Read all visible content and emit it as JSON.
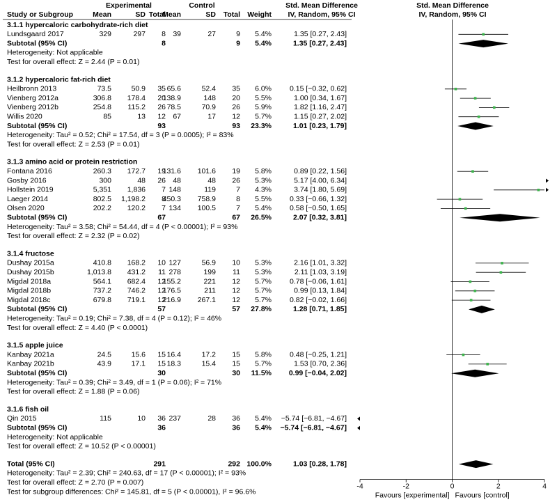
{
  "chart_data": {
    "type": "forest",
    "group_headers": {
      "experimental": "Experimental",
      "control": "Control",
      "effect": "Std. Mean Difference"
    },
    "columns": [
      "Study or Subgroup",
      "Mean",
      "SD",
      "Total",
      "Mean",
      "SD",
      "Total",
      "Weight",
      "IV, Random, 95% CI"
    ],
    "plot_title": "Std. Mean Difference",
    "plot_subtitle": "IV, Random, 95% CI",
    "xlim": [
      -4,
      4
    ],
    "xticks": [
      -4,
      -2,
      0,
      2,
      4
    ],
    "xlabel_left": "Favours [experimental]",
    "xlabel_right": "Favours [control]",
    "marker_color": "#3cb44b",
    "diamond_color": "#000000",
    "groups": [
      {
        "title": "3.1.1 hypercaloric carbohydrate-rich diet",
        "studies": [
          {
            "name": "Lundsgaard 2017",
            "cells": [
              "329",
              "297",
              "8",
              "39",
              "27",
              "9",
              "5.4%"
            ],
            "ci": "1.35 [0.27, 2.43]",
            "smd": 1.35,
            "lo": 0.27,
            "hi": 2.43
          }
        ],
        "subtotal": {
          "label": "Subtotal (95% CI)",
          "exp_total": "8",
          "ctl_total": "9",
          "weight": "5.4%",
          "ci": "1.35 [0.27, 2.43]",
          "smd": 1.35,
          "lo": 0.27,
          "hi": 2.43
        },
        "heterogeneity": "Heterogeneity: Not applicable",
        "overall_effect": "Test for overall effect: Z = 2.44 (P = 0.01)"
      },
      {
        "title": "3.1.2 hypercaloric fat-rich diet",
        "studies": [
          {
            "name": "Heilbronn 2013",
            "cells": [
              "73.5",
              "50.9",
              "35",
              "65.6",
              "52.4",
              "35",
              "6.0%"
            ],
            "ci": "0.15 [−0.32, 0.62]",
            "smd": 0.15,
            "lo": -0.32,
            "hi": 0.62
          },
          {
            "name": "Vienberg 2012a",
            "cells": [
              "306.8",
              "178.4",
              "20",
              "138.9",
              "148",
              "20",
              "5.5%"
            ],
            "ci": "1.00 [0.34, 1.67]",
            "smd": 1.0,
            "lo": 0.34,
            "hi": 1.67
          },
          {
            "name": "Vienberg 2012b",
            "cells": [
              "254.8",
              "115.2",
              "26",
              "78.5",
              "70.9",
              "26",
              "5.9%"
            ],
            "ci": "1.82 [1.16, 2.47]",
            "smd": 1.82,
            "lo": 1.16,
            "hi": 2.47
          },
          {
            "name": "Willis 2020",
            "cells": [
              "85",
              "13",
              "12",
              "67",
              "17",
              "12",
              "5.7%"
            ],
            "ci": "1.15 [0.27, 2.02]",
            "smd": 1.15,
            "lo": 0.27,
            "hi": 2.02
          }
        ],
        "subtotal": {
          "label": "Subtotal (95% CI)",
          "exp_total": "93",
          "ctl_total": "93",
          "weight": "23.3%",
          "ci": "1.01 [0.23, 1.79]",
          "smd": 1.01,
          "lo": 0.23,
          "hi": 1.79
        },
        "heterogeneity": "Heterogeneity: Tau² = 0.52; Chi² = 17.54, df = 3 (P = 0.0005); I² = 83%",
        "overall_effect": "Test for overall effect: Z = 2.53 (P = 0.01)"
      },
      {
        "title": "3.1.3 amino acid or protein restriction",
        "studies": [
          {
            "name": "Fontana 2016",
            "cells": [
              "260.3",
              "172.7",
              "19",
              "131.6",
              "101.6",
              "19",
              "5.8%"
            ],
            "ci": "0.89 [0.22, 1.56]",
            "smd": 0.89,
            "lo": 0.22,
            "hi": 1.56
          },
          {
            "name": "Gosby 2016",
            "cells": [
              "300",
              "48",
              "26",
              "48",
              "48",
              "26",
              "5.3%"
            ],
            "ci": "5.17 [4.00, 6.34]",
            "smd": 5.17,
            "lo": 4.0,
            "hi": 6.34
          },
          {
            "name": "Hollstein 2019",
            "cells": [
              "5,351",
              "1,836",
              "7",
              "148",
              "119",
              "7",
              "4.3%"
            ],
            "ci": "3.74 [1.80, 5.69]",
            "smd": 3.74,
            "lo": 1.8,
            "hi": 5.69
          },
          {
            "name": "Laeger 2014",
            "cells": [
              "802.5",
              "1,198.2",
              "8",
              "450.3",
              "758.9",
              "8",
              "5.5%"
            ],
            "ci": "0.33 [−0.66, 1.32]",
            "smd": 0.33,
            "lo": -0.66,
            "hi": 1.32
          },
          {
            "name": "Olsen 2020",
            "cells": [
              "202.2",
              "120.2",
              "7",
              "134",
              "100.5",
              "7",
              "5.4%"
            ],
            "ci": "0.58 [−0.50, 1.65]",
            "smd": 0.58,
            "lo": -0.5,
            "hi": 1.65
          }
        ],
        "subtotal": {
          "label": "Subtotal (95% CI)",
          "exp_total": "67",
          "ctl_total": "67",
          "weight": "26.5%",
          "ci": "2.07 [0.32, 3.81]",
          "smd": 2.07,
          "lo": 0.32,
          "hi": 3.81
        },
        "heterogeneity": "Heterogeneity: Tau² = 3.58; Chi² = 54.44, df = 4 (P < 0.00001); I² = 93%",
        "overall_effect": "Test for overall effect: Z = 2.32 (P = 0.02)"
      },
      {
        "title": "3.1.4 fructose",
        "studies": [
          {
            "name": "Dushay 2015a",
            "cells": [
              "410.8",
              "168.2",
              "10",
              "127",
              "56.9",
              "10",
              "5.3%"
            ],
            "ci": "2.16 [1.01, 3.32]",
            "smd": 2.16,
            "lo": 1.01,
            "hi": 3.32
          },
          {
            "name": "Dushay 2015b",
            "cells": [
              "1,013.8",
              "431.2",
              "11",
              "278",
              "199",
              "11",
              "5.3%"
            ],
            "ci": "2.11 [1.03, 3.19]",
            "smd": 2.11,
            "lo": 1.03,
            "hi": 3.19
          },
          {
            "name": "Migdal 2018a",
            "cells": [
              "564.1",
              "682.4",
              "12",
              "155.2",
              "221",
              "12",
              "5.7%"
            ],
            "ci": "0.78 [−0.06, 1.61]",
            "smd": 0.78,
            "lo": -0.06,
            "hi": 1.61
          },
          {
            "name": "Migdal 2018b",
            "cells": [
              "737.2",
              "746.2",
              "12",
              "176.5",
              "211",
              "12",
              "5.7%"
            ],
            "ci": "0.99 [0.13, 1.84]",
            "smd": 0.99,
            "lo": 0.13,
            "hi": 1.84
          },
          {
            "name": "Migdal 2018c",
            "cells": [
              "679.8",
              "719.1",
              "12",
              "216.9",
              "267.1",
              "12",
              "5.7%"
            ],
            "ci": "0.82 [−0.02, 1.66]",
            "smd": 0.82,
            "lo": -0.02,
            "hi": 1.66
          }
        ],
        "subtotal": {
          "label": "Subtotal (95% CI)",
          "exp_total": "57",
          "ctl_total": "57",
          "weight": "27.8%",
          "ci": "1.28 [0.71, 1.85]",
          "smd": 1.28,
          "lo": 0.71,
          "hi": 1.85
        },
        "heterogeneity": "Heterogeneity: Tau² = 0.19; Chi² = 7.38, df = 4 (P = 0.12); I² = 46%",
        "overall_effect": "Test for overall effect: Z = 4.40 (P < 0.0001)"
      },
      {
        "title": "3.1.5 apple juice",
        "studies": [
          {
            "name": "Kanbay 2021a",
            "cells": [
              "24.5",
              "15.6",
              "15",
              "16.4",
              "17.2",
              "15",
              "5.8%"
            ],
            "ci": "0.48 [−0.25, 1.21]",
            "smd": 0.48,
            "lo": -0.25,
            "hi": 1.21
          },
          {
            "name": "Kanbay 2021b",
            "cells": [
              "43.9",
              "17.1",
              "15",
              "18.3",
              "15.4",
              "15",
              "5.7%"
            ],
            "ci": "1.53 [0.70, 2.36]",
            "smd": 1.53,
            "lo": 0.7,
            "hi": 2.36
          }
        ],
        "subtotal": {
          "label": "Subtotal (95% CI)",
          "exp_total": "30",
          "ctl_total": "30",
          "weight": "11.5%",
          "ci": "0.99 [−0.04, 2.02]",
          "smd": 0.99,
          "lo": -0.04,
          "hi": 2.02
        },
        "heterogeneity": "Heterogeneity: Tau² = 0.39; Chi² = 3.49, df = 1 (P = 0.06); I² = 71%",
        "overall_effect": "Test for overall effect: Z = 1.88 (P = 0.06)"
      },
      {
        "title": "3.1.6 fish oil",
        "studies": [
          {
            "name": "Qin 2015",
            "cells": [
              "115",
              "10",
              "36",
              "237",
              "28",
              "36",
              "5.4%"
            ],
            "ci": "−5.74 [−6.81, −4.67]",
            "smd": -5.74,
            "lo": -6.81,
            "hi": -4.67
          }
        ],
        "subtotal": {
          "label": "Subtotal (95% CI)",
          "exp_total": "36",
          "ctl_total": "36",
          "weight": "5.4%",
          "ci": "−5.74 [−6.81, −4.67]",
          "smd": -5.74,
          "lo": -6.81,
          "hi": -4.67
        },
        "heterogeneity": "Heterogeneity: Not applicable",
        "overall_effect": "Test for overall effect: Z = 10.52 (P < 0.00001)"
      }
    ],
    "total": {
      "label": "Total (95% CI)",
      "exp_total": "291",
      "ctl_total": "292",
      "weight": "100.0%",
      "ci": "1.03 [0.28, 1.78]",
      "smd": 1.03,
      "lo": 0.28,
      "hi": 1.78,
      "heterogeneity": "Heterogeneity: Tau² = 2.39; Chi² = 240.63, df = 17 (P < 0.00001); I² = 93%",
      "overall_effect": "Test for overall effect: Z = 2.70 (P = 0.007)",
      "subgroup_differences": "Test for subgroup differences: Chi² = 145.81, df = 5 (P < 0.00001), I² = 96.6%"
    }
  }
}
